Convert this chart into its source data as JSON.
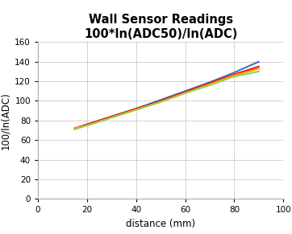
{
  "title_line1": "Wall Sensor Readings",
  "title_line2": "100*ln(ADC50)/ln(ADC)",
  "xlabel": "distance (mm)",
  "ylabel": "100/ln(ADC)",
  "xlim": [
    0,
    100
  ],
  "ylim": [
    0,
    160
  ],
  "xticks": [
    0,
    20,
    40,
    60,
    80,
    100
  ],
  "yticks": [
    0,
    20,
    40,
    60,
    80,
    100,
    120,
    140,
    160
  ],
  "lines": [
    {
      "x": [
        15,
        20,
        30,
        40,
        50,
        60,
        70,
        80,
        90
      ],
      "y": [
        72,
        76,
        84,
        92,
        101,
        110,
        119,
        129,
        140
      ],
      "color": "#4472C4",
      "lw": 1.5
    },
    {
      "x": [
        15,
        20,
        30,
        40,
        50,
        60,
        70,
        80,
        90
      ],
      "y": [
        72,
        76,
        84,
        92,
        100,
        109,
        118,
        127,
        135
      ],
      "color": "#FF0000",
      "lw": 1.5
    },
    {
      "x": [
        15,
        20,
        30,
        40,
        50,
        60,
        70,
        80,
        90
      ],
      "y": [
        72,
        75,
        83,
        91,
        99,
        108,
        117,
        126,
        133
      ],
      "color": "#FFA500",
      "lw": 1.5
    },
    {
      "x": [
        15,
        20,
        30,
        40,
        50,
        60,
        70,
        80,
        90
      ],
      "y": [
        71,
        75,
        83,
        91,
        99,
        108,
        116,
        125,
        130
      ],
      "color": "#92D050",
      "lw": 1.5
    }
  ],
  "background_color": "#FFFFFF",
  "title_fontsize": 10.5,
  "label_fontsize": 8.5,
  "tick_fontsize": 7.5,
  "grid_color": "#C0C0C0",
  "spine_color": "#AAAAAA"
}
